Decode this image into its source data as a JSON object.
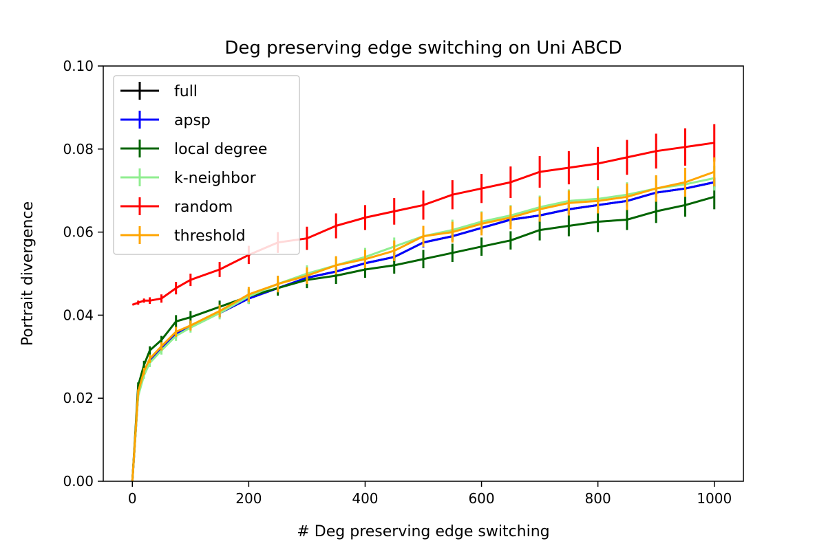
{
  "chart_data": {
    "type": "line",
    "title": "Deg preserving edge switching on Uni ABCD",
    "xlabel": "# Deg preserving edge switching",
    "ylabel": "Portrait divergence",
    "xlim": [
      -50,
      1050
    ],
    "ylim": [
      0.0,
      0.1
    ],
    "xticks": [
      0,
      200,
      400,
      600,
      800,
      1000
    ],
    "xtick_labels": [
      "0",
      "200",
      "400",
      "600",
      "800",
      "1000"
    ],
    "yticks": [
      0.0,
      0.02,
      0.04,
      0.06,
      0.08,
      0.1
    ],
    "ytick_labels": [
      "0.00",
      "0.02",
      "0.04",
      "0.06",
      "0.08",
      "0.10"
    ],
    "grid": false,
    "legend_position": "top-left",
    "x": [
      0,
      10,
      20,
      30,
      50,
      75,
      100,
      150,
      200,
      250,
      300,
      350,
      400,
      450,
      500,
      550,
      600,
      650,
      700,
      750,
      800,
      850,
      900,
      950,
      1000
    ],
    "series": [
      {
        "name": "full",
        "color": "#000000",
        "values": [
          0.0,
          0.021,
          0.026,
          0.029,
          0.032,
          0.0355,
          0.0375,
          0.0405,
          0.044,
          0.0465,
          0.049,
          0.0505,
          0.0525,
          0.054,
          0.0575,
          0.059,
          0.061,
          0.063,
          0.064,
          0.0655,
          0.0665,
          0.0675,
          0.0695,
          0.0705,
          0.072
        ],
        "err": [
          0.0,
          0.0005,
          0.0005,
          0.0005,
          0.0008,
          0.0008,
          0.001,
          0.001,
          0.001,
          0.001,
          0.001,
          0.001,
          0.001,
          0.001,
          0.001,
          0.001,
          0.001,
          0.001,
          0.001,
          0.001,
          0.001,
          0.001,
          0.001,
          0.001,
          0.001
        ]
      },
      {
        "name": "apsp",
        "color": "#0000ff",
        "values": [
          0.0,
          0.021,
          0.026,
          0.029,
          0.032,
          0.0355,
          0.0375,
          0.0405,
          0.044,
          0.0465,
          0.049,
          0.0505,
          0.0525,
          0.054,
          0.0575,
          0.059,
          0.061,
          0.063,
          0.064,
          0.0655,
          0.0665,
          0.0675,
          0.0695,
          0.0705,
          0.072
        ],
        "err": [
          0.0,
          0.0005,
          0.0006,
          0.0006,
          0.0008,
          0.001,
          0.001,
          0.0012,
          0.0012,
          0.0012,
          0.0012,
          0.0012,
          0.0012,
          0.0012,
          0.0012,
          0.0012,
          0.0012,
          0.0012,
          0.0012,
          0.0012,
          0.0012,
          0.0012,
          0.0012,
          0.0012,
          0.0012
        ]
      },
      {
        "name": "local degree",
        "color": "#006400",
        "values": [
          0.0,
          0.023,
          0.028,
          0.0315,
          0.034,
          0.0385,
          0.0395,
          0.042,
          0.0445,
          0.0465,
          0.0485,
          0.0495,
          0.051,
          0.052,
          0.0535,
          0.055,
          0.0565,
          0.058,
          0.0605,
          0.0615,
          0.0625,
          0.063,
          0.065,
          0.0665,
          0.0685
        ],
        "err": [
          0.0,
          0.0008,
          0.001,
          0.001,
          0.001,
          0.0015,
          0.0015,
          0.0015,
          0.0018,
          0.0018,
          0.002,
          0.002,
          0.002,
          0.002,
          0.0022,
          0.0022,
          0.0022,
          0.0022,
          0.0025,
          0.0025,
          0.0025,
          0.0025,
          0.0028,
          0.0028,
          0.003
        ]
      },
      {
        "name": "k-neighbor",
        "color": "#90ee90",
        "values": [
          0.0,
          0.0205,
          0.0255,
          0.0285,
          0.0315,
          0.035,
          0.037,
          0.0405,
          0.0445,
          0.0475,
          0.05,
          0.052,
          0.054,
          0.0565,
          0.059,
          0.0605,
          0.0625,
          0.064,
          0.066,
          0.0675,
          0.068,
          0.069,
          0.0705,
          0.0715,
          0.073
        ],
        "err": [
          0.0,
          0.0006,
          0.0008,
          0.001,
          0.001,
          0.0012,
          0.0012,
          0.0015,
          0.0018,
          0.002,
          0.002,
          0.002,
          0.0022,
          0.0022,
          0.0025,
          0.0025,
          0.0025,
          0.0025,
          0.0028,
          0.0028,
          0.003,
          0.003,
          0.003,
          0.003,
          0.003
        ]
      },
      {
        "name": "random",
        "color": "#ff0000",
        "values": [
          0.0425,
          0.043,
          0.0435,
          0.0435,
          0.044,
          0.0465,
          0.0485,
          0.051,
          0.0545,
          0.0575,
          0.0585,
          0.0615,
          0.0635,
          0.065,
          0.0665,
          0.069,
          0.0705,
          0.072,
          0.0745,
          0.0755,
          0.0765,
          0.078,
          0.0795,
          0.0805,
          0.0815
        ],
        "err": [
          0.0,
          0.0005,
          0.0005,
          0.0008,
          0.001,
          0.0015,
          0.0015,
          0.0018,
          0.0022,
          0.0025,
          0.0028,
          0.003,
          0.003,
          0.0032,
          0.0035,
          0.0035,
          0.0035,
          0.0038,
          0.0038,
          0.004,
          0.004,
          0.0042,
          0.0042,
          0.0045,
          0.0045
        ]
      },
      {
        "name": "threshold",
        "color": "#ffa500",
        "values": [
          0.0,
          0.0215,
          0.0265,
          0.0295,
          0.0325,
          0.036,
          0.0375,
          0.041,
          0.045,
          0.0475,
          0.0495,
          0.052,
          0.0535,
          0.0555,
          0.059,
          0.06,
          0.062,
          0.0635,
          0.0655,
          0.067,
          0.0675,
          0.0685,
          0.0705,
          0.072,
          0.0745
        ],
        "err": [
          0.0,
          0.0006,
          0.0008,
          0.001,
          0.001,
          0.0012,
          0.0012,
          0.0015,
          0.0018,
          0.002,
          0.002,
          0.0022,
          0.0022,
          0.0025,
          0.0025,
          0.0025,
          0.0028,
          0.0028,
          0.003,
          0.003,
          0.003,
          0.0032,
          0.0032,
          0.0035,
          0.0035
        ]
      }
    ]
  }
}
